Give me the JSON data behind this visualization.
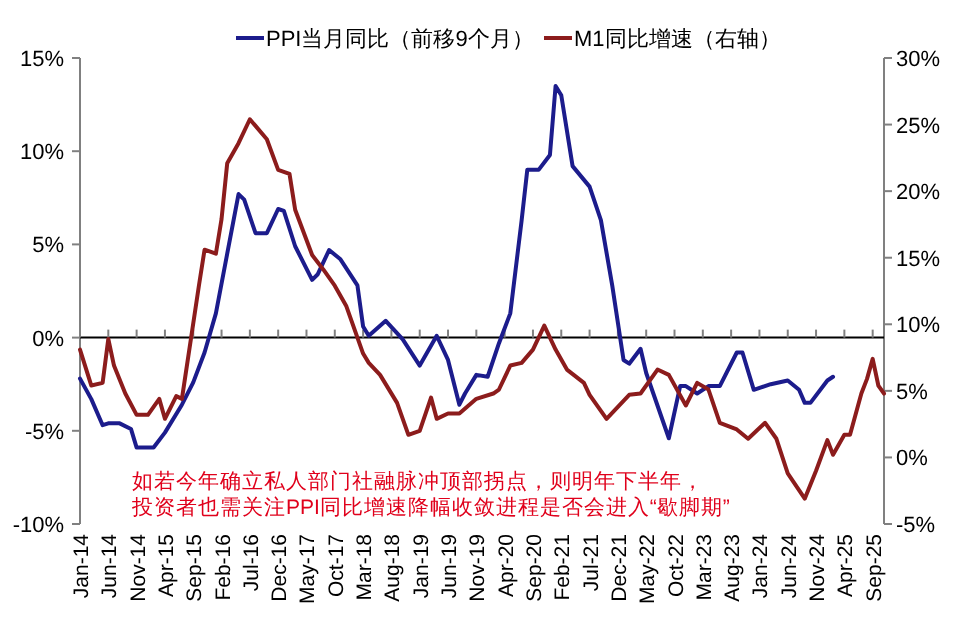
{
  "chart_data": {
    "type": "line",
    "legend": "top",
    "xlim": [
      "2014-01",
      "2025-11"
    ],
    "xticks": [
      {
        "value": "2014-01",
        "label": "Jan-14"
      },
      {
        "value": "2014-06",
        "label": "Jun-14"
      },
      {
        "value": "2014-11",
        "label": "Nov-14"
      },
      {
        "value": "2015-04",
        "label": "Apr-15"
      },
      {
        "value": "2015-09",
        "label": "Sep-15"
      },
      {
        "value": "2016-02",
        "label": "Feb-16"
      },
      {
        "value": "2016-07",
        "label": "Jul-16"
      },
      {
        "value": "2016-12",
        "label": "Dec-16"
      },
      {
        "value": "2017-05",
        "label": "May-17"
      },
      {
        "value": "2017-10",
        "label": "Oct-17"
      },
      {
        "value": "2018-03",
        "label": "Mar-18"
      },
      {
        "value": "2018-08",
        "label": "Aug-18"
      },
      {
        "value": "2019-01",
        "label": "Jan-19"
      },
      {
        "value": "2019-06",
        "label": "Jun-19"
      },
      {
        "value": "2019-11",
        "label": "Nov-19"
      },
      {
        "value": "2020-04",
        "label": "Apr-20"
      },
      {
        "value": "2020-09",
        "label": "Sep-20"
      },
      {
        "value": "2021-02",
        "label": "Feb-21"
      },
      {
        "value": "2021-07",
        "label": "Jul-21"
      },
      {
        "value": "2021-12",
        "label": "Dec-21"
      },
      {
        "value": "2022-05",
        "label": "May-22"
      },
      {
        "value": "2022-10",
        "label": "Oct-22"
      },
      {
        "value": "2023-03",
        "label": "Mar-23"
      },
      {
        "value": "2023-08",
        "label": "Aug-23"
      },
      {
        "value": "2024-01",
        "label": "Jan-24"
      },
      {
        "value": "2024-06",
        "label": "Jun-24"
      },
      {
        "value": "2024-11",
        "label": "Nov-24"
      },
      {
        "value": "2025-04",
        "label": "Apr-25"
      },
      {
        "value": "2025-09",
        "label": "Sep-25"
      }
    ],
    "ylim": [
      -10,
      15
    ],
    "yticks": [
      {
        "value": -10,
        "label": "-10%"
      },
      {
        "value": -5,
        "label": "-5%"
      },
      {
        "value": 0,
        "label": "0%"
      },
      {
        "value": 5,
        "label": "5%"
      },
      {
        "value": 10,
        "label": "10%"
      },
      {
        "value": 15,
        "label": "15%"
      }
    ],
    "y2lim": [
      -5,
      30
    ],
    "y2ticks": [
      {
        "value": -5,
        "label": "-5%"
      },
      {
        "value": 0,
        "label": "0%"
      },
      {
        "value": 5,
        "label": "5%"
      },
      {
        "value": 10,
        "label": "10%"
      },
      {
        "value": 15,
        "label": "15%"
      },
      {
        "value": 20,
        "label": "20%"
      },
      {
        "value": 25,
        "label": "25%"
      },
      {
        "value": 30,
        "label": "30%"
      }
    ],
    "series": [
      {
        "name": "PPI当月同比（前移9个月）",
        "color": "#1c1c8c",
        "x": [
          "2014-01",
          "2014-03",
          "2014-05",
          "2014-06",
          "2014-08",
          "2014-10",
          "2014-11",
          "2015-02",
          "2015-04",
          "2015-07",
          "2015-09",
          "2015-11",
          "2016-01",
          "2016-03",
          "2016-05",
          "2016-06",
          "2016-08",
          "2016-10",
          "2016-12",
          "2017-01",
          "2017-03",
          "2017-06",
          "2017-07",
          "2017-09",
          "2017-11",
          "2018-02",
          "2018-03",
          "2018-04",
          "2018-07",
          "2018-10",
          "2019-01",
          "2019-04",
          "2019-06",
          "2019-08",
          "2019-09",
          "2019-11",
          "2020-01",
          "2020-03",
          "2020-05",
          "2020-07",
          "2020-08",
          "2020-10",
          "2020-12",
          "2021-01",
          "2021-02",
          "2021-04",
          "2021-07",
          "2021-09",
          "2021-11",
          "2022-01",
          "2022-02",
          "2022-04",
          "2022-05",
          "2022-09",
          "2022-11",
          "2022-12",
          "2023-02",
          "2023-04",
          "2023-06",
          "2023-09",
          "2023-10",
          "2023-12",
          "2024-03",
          "2024-06",
          "2024-08",
          "2024-09",
          "2024-10",
          "2025-01",
          "2025-02"
        ],
        "values": [
          -2.2,
          -3.3,
          -4.7,
          -4.6,
          -4.6,
          -4.9,
          -5.9,
          -5.9,
          -5.1,
          -3.6,
          -2.4,
          -0.8,
          1.3,
          4.5,
          7.7,
          7.4,
          5.6,
          5.6,
          6.9,
          6.8,
          4.9,
          3.1,
          3.4,
          4.7,
          4.2,
          2.8,
          0.6,
          0.1,
          0.9,
          -0.1,
          -1.5,
          0.1,
          -1.2,
          -3.6,
          -3.0,
          -2.0,
          -2.1,
          -0.3,
          1.3,
          6.3,
          9.0,
          9.0,
          9.8,
          13.5,
          13.0,
          9.2,
          8.1,
          6.3,
          2.8,
          -1.2,
          -1.4,
          -0.6,
          -1.9,
          -5.4,
          -2.6,
          -2.6,
          -3.0,
          -2.6,
          -2.6,
          -0.8,
          -0.8,
          -2.8,
          -2.5,
          -2.3,
          -2.8,
          -3.5,
          -3.5,
          -2.3,
          -2.1
        ]
      },
      {
        "name": "M1同比增速（右轴）",
        "color": "#8c1c1c",
        "axis": "y2",
        "x": [
          "2014-01",
          "2014-03",
          "2014-05",
          "2014-06",
          "2014-07",
          "2014-09",
          "2014-11",
          "2015-01",
          "2015-03",
          "2015-04",
          "2015-06",
          "2015-07",
          "2015-10",
          "2015-11",
          "2016-01",
          "2016-02",
          "2016-03",
          "2016-05",
          "2016-07",
          "2016-08",
          "2016-10",
          "2016-12",
          "2017-02",
          "2017-03",
          "2017-06",
          "2017-08",
          "2017-10",
          "2017-12",
          "2018-03",
          "2018-04",
          "2018-06",
          "2018-09",
          "2018-11",
          "2019-01",
          "2019-03",
          "2019-04",
          "2019-06",
          "2019-08",
          "2019-11",
          "2020-02",
          "2020-03",
          "2020-05",
          "2020-07",
          "2020-09",
          "2020-11",
          "2021-01",
          "2021-03",
          "2021-06",
          "2021-07",
          "2021-10",
          "2022-02",
          "2022-04",
          "2022-07",
          "2022-09",
          "2022-12",
          "2023-02",
          "2023-04",
          "2023-06",
          "2023-09",
          "2023-11",
          "2024-02",
          "2024-04",
          "2024-06",
          "2024-09",
          "2024-11",
          "2025-01",
          "2025-02",
          "2025-04",
          "2025-05",
          "2025-07",
          "2025-08",
          "2025-09",
          "2025-10",
          "2025-11"
        ],
        "values": [
          8.1,
          5.4,
          5.6,
          8.9,
          6.9,
          4.8,
          3.2,
          3.2,
          4.4,
          2.9,
          4.6,
          4.4,
          12.9,
          15.6,
          15.3,
          17.9,
          22.1,
          23.6,
          25.4,
          24.9,
          23.9,
          21.6,
          21.3,
          18.6,
          15.2,
          14.1,
          12.9,
          11.4,
          7.8,
          7.1,
          6.2,
          4.1,
          1.7,
          2.0,
          4.5,
          2.9,
          3.3,
          3.3,
          4.4,
          4.8,
          5.1,
          6.9,
          7.1,
          8.1,
          9.9,
          8.1,
          6.6,
          5.6,
          4.7,
          2.9,
          4.7,
          4.8,
          6.6,
          6.2,
          3.9,
          5.6,
          5.1,
          2.6,
          2.1,
          1.4,
          2.6,
          1.4,
          -1.2,
          -3.1,
          -1.0,
          1.3,
          0.2,
          1.7,
          1.7,
          4.8,
          5.9,
          7.4,
          5.4,
          4.8
        ]
      }
    ],
    "annotations": [
      "如若今年确立私人部门社融脉冲顶部拐点，则明年下半年，",
      "投资者也需关注PPI同比增速降幅收敛进程是否会进入“歇脚期”"
    ]
  }
}
